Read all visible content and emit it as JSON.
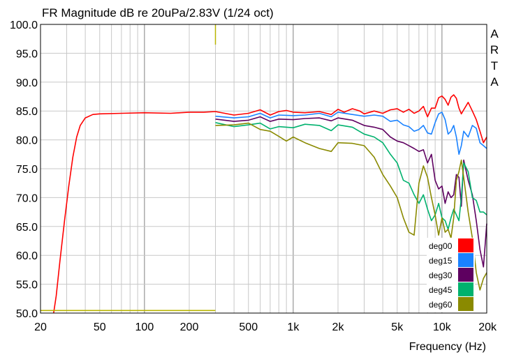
{
  "chart_data": {
    "type": "line",
    "title": "FR Magnitude dB re 20uPa/2.83V (1/24 oct)",
    "watermark": "ARTA",
    "xlabel": "Frequency (Hz)",
    "ylabel": "",
    "xscale": "log",
    "xlim": [
      20,
      20000
    ],
    "ylim": [
      50,
      100
    ],
    "grid": true,
    "legend_position": "bottom-right",
    "x_tick_labels": [
      {
        "value": 20,
        "label": "20"
      },
      {
        "value": 50,
        "label": "50"
      },
      {
        "value": 100,
        "label": "100"
      },
      {
        "value": 200,
        "label": "200"
      },
      {
        "value": 500,
        "label": "500"
      },
      {
        "value": 1000,
        "label": "1k"
      },
      {
        "value": 2000,
        "label": "2k"
      },
      {
        "value": 5000,
        "label": "5k"
      },
      {
        "value": 10000,
        "label": "10k"
      },
      {
        "value": 20000,
        "label": "20k"
      }
    ],
    "y_tick_labels": [
      {
        "value": 50,
        "label": "50.0"
      },
      {
        "value": 55,
        "label": "55.0"
      },
      {
        "value": 60,
        "label": "60.0"
      },
      {
        "value": 65,
        "label": "65.0"
      },
      {
        "value": 70,
        "label": "70.0"
      },
      {
        "value": 75,
        "label": "75.0"
      },
      {
        "value": 80,
        "label": "80.0"
      },
      {
        "value": 85,
        "label": "85.0"
      },
      {
        "value": 90,
        "label": "90.0"
      },
      {
        "value": 95,
        "label": "95.0"
      },
      {
        "value": 100,
        "label": "100.0"
      }
    ],
    "series": [
      {
        "name": "deg00",
        "color": "#ff0000",
        "points": [
          [
            24.5,
            50
          ],
          [
            25.5,
            53
          ],
          [
            27,
            59
          ],
          [
            29,
            66
          ],
          [
            31,
            72
          ],
          [
            33,
            77
          ],
          [
            35,
            80.5
          ],
          [
            37,
            82.5
          ],
          [
            40,
            83.8
          ],
          [
            45,
            84.4
          ],
          [
            50,
            84.5
          ],
          [
            70,
            84.6
          ],
          [
            100,
            84.7
          ],
          [
            150,
            84.6
          ],
          [
            200,
            84.8
          ],
          [
            250,
            84.8
          ],
          [
            300,
            84.9
          ],
          [
            400,
            84.3
          ],
          [
            500,
            84.6
          ],
          [
            600,
            85.2
          ],
          [
            700,
            84.3
          ],
          [
            800,
            84.9
          ],
          [
            900,
            85.1
          ],
          [
            1000,
            84.8
          ],
          [
            1200,
            84.7
          ],
          [
            1500,
            84.9
          ],
          [
            1800,
            84.4
          ],
          [
            2000,
            85.3
          ],
          [
            2200,
            84.8
          ],
          [
            2500,
            85.4
          ],
          [
            2800,
            85.0
          ],
          [
            3000,
            84.5
          ],
          [
            3500,
            85.0
          ],
          [
            4000,
            84.6
          ],
          [
            4500,
            85.2
          ],
          [
            5000,
            85.4
          ],
          [
            5500,
            84.8
          ],
          [
            6000,
            85.3
          ],
          [
            6500,
            84.6
          ],
          [
            7000,
            85.0
          ],
          [
            7500,
            85.8
          ],
          [
            8000,
            84.0
          ],
          [
            8500,
            85.5
          ],
          [
            9000,
            85.5
          ],
          [
            9500,
            87.3
          ],
          [
            10000,
            87.6
          ],
          [
            10500,
            87.0
          ],
          [
            11000,
            86.0
          ],
          [
            11500,
            87.4
          ],
          [
            12000,
            87.8
          ],
          [
            12500,
            87.2
          ],
          [
            13000,
            85.5
          ],
          [
            13500,
            84.5
          ],
          [
            14000,
            85.2
          ],
          [
            15000,
            86.5
          ],
          [
            16000,
            85.0
          ],
          [
            17000,
            83.5
          ],
          [
            18000,
            81.5
          ],
          [
            19000,
            79.5
          ],
          [
            20000,
            80.5
          ]
        ]
      },
      {
        "name": "deg15",
        "color": "#1a82ff",
        "points": [
          [
            300,
            84.1
          ],
          [
            400,
            83.8
          ],
          [
            500,
            84.0
          ],
          [
            600,
            84.6
          ],
          [
            700,
            83.8
          ],
          [
            800,
            84.3
          ],
          [
            1000,
            84.2
          ],
          [
            1200,
            84.3
          ],
          [
            1500,
            84.6
          ],
          [
            1800,
            84.0
          ],
          [
            2000,
            84.8
          ],
          [
            2500,
            84.4
          ],
          [
            3000,
            84.1
          ],
          [
            3500,
            84.3
          ],
          [
            4000,
            84.1
          ],
          [
            4500,
            83.2
          ],
          [
            5000,
            83.4
          ],
          [
            5500,
            82.6
          ],
          [
            6000,
            82.3
          ],
          [
            6500,
            81.5
          ],
          [
            7000,
            81.8
          ],
          [
            7500,
            82.5
          ],
          [
            8000,
            81.2
          ],
          [
            8500,
            81.0
          ],
          [
            9000,
            83.0
          ],
          [
            9500,
            84.5
          ],
          [
            10000,
            84.8
          ],
          [
            10500,
            83.5
          ],
          [
            11000,
            81.0
          ],
          [
            11500,
            81.5
          ],
          [
            12000,
            82.5
          ],
          [
            12500,
            80.5
          ],
          [
            13000,
            77.5
          ],
          [
            13500,
            79.0
          ],
          [
            14000,
            81.5
          ],
          [
            15000,
            80.5
          ],
          [
            16000,
            82.5
          ],
          [
            17000,
            82.0
          ],
          [
            18000,
            79.5
          ],
          [
            19000,
            79.0
          ],
          [
            20000,
            78.5
          ]
        ]
      },
      {
        "name": "deg30",
        "color": "#5e0060",
        "points": [
          [
            300,
            83.6
          ],
          [
            400,
            83.2
          ],
          [
            500,
            83.4
          ],
          [
            600,
            84.0
          ],
          [
            700,
            83.2
          ],
          [
            800,
            83.6
          ],
          [
            1000,
            83.5
          ],
          [
            1200,
            83.7
          ],
          [
            1500,
            83.8
          ],
          [
            1800,
            83.3
          ],
          [
            2000,
            83.8
          ],
          [
            2500,
            83.4
          ],
          [
            3000,
            82.5
          ],
          [
            3500,
            82.2
          ],
          [
            4000,
            81.8
          ],
          [
            4500,
            80.5
          ],
          [
            5000,
            79.8
          ],
          [
            5500,
            79.5
          ],
          [
            6000,
            79.0
          ],
          [
            6500,
            78.5
          ],
          [
            7000,
            78.0
          ],
          [
            7500,
            78.3
          ],
          [
            8000,
            76.0
          ],
          [
            8500,
            77.5
          ],
          [
            9000,
            73.0
          ],
          [
            9500,
            71.5
          ],
          [
            10000,
            72.0
          ],
          [
            10500,
            69.0
          ],
          [
            11000,
            71.0
          ],
          [
            11500,
            70.0
          ],
          [
            12000,
            70.5
          ],
          [
            12500,
            74.0
          ],
          [
            13000,
            73.5
          ],
          [
            13500,
            68.5
          ],
          [
            14000,
            76.5
          ],
          [
            15000,
            73.0
          ],
          [
            16000,
            70.5
          ],
          [
            17000,
            66.0
          ],
          [
            18000,
            61.0
          ],
          [
            19000,
            58.0
          ],
          [
            20000,
            65.5
          ]
        ]
      },
      {
        "name": "deg45",
        "color": "#00b26e",
        "points": [
          [
            300,
            83.0
          ],
          [
            400,
            82.3
          ],
          [
            500,
            82.6
          ],
          [
            600,
            82.9
          ],
          [
            700,
            81.9
          ],
          [
            800,
            82.3
          ],
          [
            1000,
            82.1
          ],
          [
            1200,
            82.7
          ],
          [
            1500,
            82.5
          ],
          [
            1800,
            81.6
          ],
          [
            2000,
            82.6
          ],
          [
            2500,
            82.2
          ],
          [
            3000,
            81.0
          ],
          [
            3500,
            80.5
          ],
          [
            4000,
            79.5
          ],
          [
            4500,
            77.5
          ],
          [
            5000,
            76.0
          ],
          [
            5500,
            73.0
          ],
          [
            6000,
            72.5
          ],
          [
            6500,
            70.5
          ],
          [
            7000,
            69.0
          ],
          [
            7500,
            70.5
          ],
          [
            8000,
            68.0
          ],
          [
            8500,
            66.0
          ],
          [
            9000,
            67.0
          ],
          [
            9500,
            69.0
          ],
          [
            10000,
            66.5
          ],
          [
            10500,
            66.0
          ],
          [
            11000,
            64.5
          ],
          [
            11500,
            66.5
          ],
          [
            12000,
            68.0
          ],
          [
            12500,
            67.0
          ],
          [
            13000,
            66.0
          ],
          [
            13500,
            70.0
          ],
          [
            14000,
            76.0
          ],
          [
            15000,
            74.5
          ],
          [
            16000,
            70.0
          ],
          [
            17000,
            69.5
          ],
          [
            18000,
            67.5
          ],
          [
            19000,
            67.5
          ],
          [
            20000,
            67.0
          ]
        ]
      },
      {
        "name": "deg60",
        "color": "#8a8a00",
        "points": [
          [
            300,
            82.5
          ],
          [
            400,
            82.6
          ],
          [
            500,
            82.9
          ],
          [
            600,
            81.8
          ],
          [
            700,
            81.5
          ],
          [
            800,
            80.6
          ],
          [
            900,
            79.8
          ],
          [
            1000,
            80.5
          ],
          [
            1200,
            79.5
          ],
          [
            1500,
            78.5
          ],
          [
            1800,
            78.0
          ],
          [
            2000,
            79.5
          ],
          [
            2500,
            79.4
          ],
          [
            3000,
            79.0
          ],
          [
            3500,
            77.0
          ],
          [
            4000,
            74.0
          ],
          [
            4500,
            72.0
          ],
          [
            5000,
            70.0
          ],
          [
            5500,
            66.5
          ],
          [
            6000,
            64.0
          ],
          [
            6500,
            63.5
          ],
          [
            7000,
            72.5
          ],
          [
            7500,
            75.5
          ],
          [
            8000,
            73.5
          ],
          [
            8500,
            70.0
          ],
          [
            9000,
            67.0
          ],
          [
            9500,
            63.5
          ],
          [
            10000,
            66.5
          ],
          [
            10500,
            64.0
          ],
          [
            11000,
            64.5
          ],
          [
            11500,
            63.0
          ],
          [
            12000,
            66.5
          ],
          [
            12500,
            73.0
          ],
          [
            13000,
            74.5
          ],
          [
            13500,
            76.5
          ],
          [
            14000,
            73.5
          ],
          [
            15000,
            67.5
          ],
          [
            16000,
            63.0
          ],
          [
            17000,
            57.0
          ],
          [
            18000,
            54.0
          ],
          [
            19000,
            56.0
          ],
          [
            20000,
            57.0
          ]
        ]
      },
      {
        "name": "",
        "color": "#b8b400",
        "points": [
          [
            20,
            50.45
          ],
          [
            300,
            50.45
          ]
        ]
      }
    ],
    "markers": [
      {
        "name": "vertical-marker",
        "color": "#b8b400",
        "x": 300,
        "y_from": 96.5,
        "y_to": 100
      }
    ]
  }
}
